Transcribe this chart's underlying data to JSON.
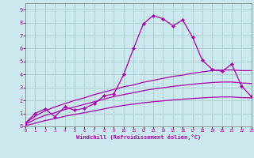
{
  "xlabel": "Windchill (Refroidissement éolien,°C)",
  "bg_color": "#cce8ef",
  "grid_color": "#aacccc",
  "line_color": "#aa00aa",
  "x_ticks": [
    0,
    1,
    2,
    3,
    4,
    5,
    6,
    7,
    8,
    9,
    10,
    11,
    12,
    13,
    14,
    15,
    16,
    17,
    18,
    19,
    20,
    21,
    22,
    23
  ],
  "y_ticks": [
    0,
    1,
    2,
    3,
    4,
    5,
    6,
    7,
    8,
    9
  ],
  "xlim": [
    0,
    23
  ],
  "ylim": [
    0,
    9.5
  ],
  "spiky_x": [
    0,
    1,
    2,
    3,
    4,
    5,
    6,
    7,
    8,
    9,
    10,
    11,
    12,
    13,
    14,
    15,
    16,
    17,
    18,
    19,
    20,
    21,
    22,
    23
  ],
  "spiky_y": [
    0.25,
    1.0,
    1.35,
    0.75,
    1.5,
    1.25,
    1.4,
    1.75,
    2.35,
    2.5,
    4.0,
    6.0,
    7.9,
    8.55,
    8.3,
    7.75,
    8.2,
    6.9,
    5.1,
    4.4,
    4.25,
    4.8,
    3.1,
    2.3
  ],
  "upper_x": [
    0,
    1,
    2,
    3,
    4,
    5,
    6,
    7,
    8,
    9,
    10,
    11,
    12,
    13,
    14,
    15,
    16,
    17,
    18,
    19,
    20,
    21,
    22,
    23
  ],
  "upper_y": [
    0.25,
    0.8,
    1.2,
    1.5,
    1.75,
    2.0,
    2.2,
    2.45,
    2.65,
    2.85,
    3.05,
    3.2,
    3.4,
    3.55,
    3.7,
    3.85,
    3.95,
    4.1,
    4.2,
    4.3,
    4.35,
    4.35,
    4.3,
    4.3
  ],
  "mid_x": [
    0,
    1,
    2,
    3,
    4,
    5,
    6,
    7,
    8,
    9,
    10,
    11,
    12,
    13,
    14,
    15,
    16,
    17,
    18,
    19,
    20,
    21,
    22,
    23
  ],
  "mid_y": [
    0.15,
    0.55,
    0.85,
    1.05,
    1.3,
    1.5,
    1.7,
    1.9,
    2.1,
    2.3,
    2.45,
    2.6,
    2.75,
    2.88,
    2.98,
    3.08,
    3.17,
    3.25,
    3.32,
    3.38,
    3.42,
    3.42,
    3.35,
    3.3
  ],
  "lower_x": [
    0,
    1,
    2,
    3,
    4,
    5,
    6,
    7,
    8,
    9,
    10,
    11,
    12,
    13,
    14,
    15,
    16,
    17,
    18,
    19,
    20,
    21,
    22,
    23
  ],
  "lower_y": [
    0.05,
    0.25,
    0.45,
    0.6,
    0.78,
    0.92,
    1.05,
    1.2,
    1.35,
    1.5,
    1.62,
    1.72,
    1.82,
    1.9,
    1.97,
    2.04,
    2.1,
    2.15,
    2.2,
    2.24,
    2.27,
    2.27,
    2.22,
    2.2
  ]
}
